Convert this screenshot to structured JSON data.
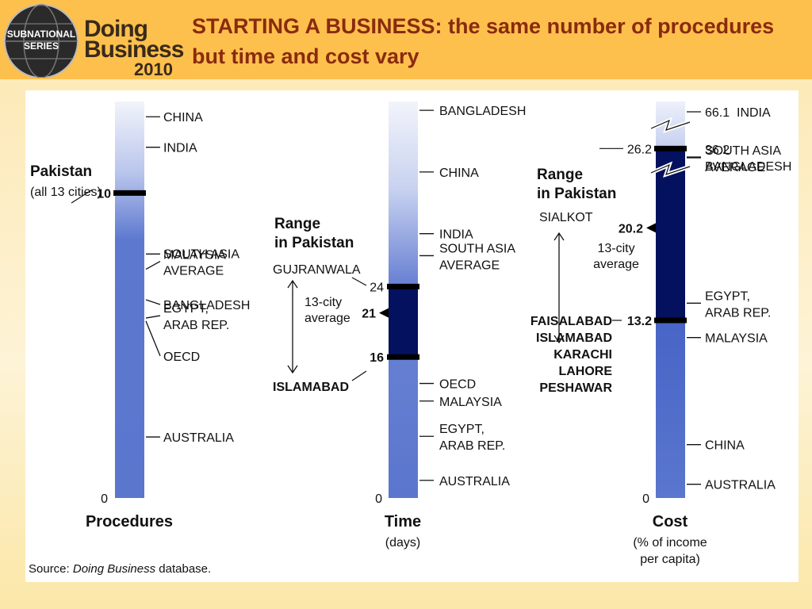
{
  "header": {
    "logo": {
      "line1": "SUBNATIONAL",
      "line2": "SERIES",
      "brand1": "Doing",
      "brand2": "Business",
      "year": "2010"
    },
    "title": "STARTING A BUSINESS: the same number of procedures but time and cost vary"
  },
  "source": {
    "prefix": "Source: ",
    "italic": "Doing Business",
    "suffix": " database."
  },
  "colors": {
    "header_bg": "#fdc04d",
    "title": "#8a2a0e",
    "bar_light": "#eef2fb",
    "bar_mid": "#5a76cd",
    "bar_dark": "#03115e"
  },
  "chart_data": [
    {
      "type": "bar",
      "title": "Procedures",
      "subtitle": "",
      "ylim": [
        0,
        13
      ],
      "zero_label": "0",
      "economies": [
        {
          "name": "CHINA",
          "value": 12.5
        },
        {
          "name": "INDIA",
          "value": 11.5
        },
        {
          "name": "MALAYSIA",
          "value": 8
        },
        {
          "name": "SOUTH ASIA AVERAGE",
          "value": 7.5
        },
        {
          "name": "BANGLADESH",
          "value": 6.5
        },
        {
          "name": "EGYPT, ARAB REP.",
          "value": 5.9
        },
        {
          "name": "OECD",
          "value": 5.8
        },
        {
          "name": "AUSTRALIA",
          "value": 2
        }
      ],
      "pakistan": {
        "label": "Pakistan",
        "note": "(all 13 cities)",
        "value": 10,
        "value_label": "10"
      }
    },
    {
      "type": "bar",
      "title": "Time",
      "subtitle": "(days)",
      "ylim": [
        0,
        45
      ],
      "zero_label": "0",
      "economies": [
        {
          "name": "BANGLADESH",
          "value": 44
        },
        {
          "name": "CHINA",
          "value": 37
        },
        {
          "name": "INDIA",
          "value": 30
        },
        {
          "name": "SOUTH ASIA AVERAGE",
          "value": 27.5
        },
        {
          "name": "OECD",
          "value": 13
        },
        {
          "name": "MALAYSIA",
          "value": 11
        },
        {
          "name": "EGYPT, ARAB REP.",
          "value": 7
        },
        {
          "name": "AUSTRALIA",
          "value": 2
        }
      ],
      "range": {
        "heading": "Range in Pakistan",
        "high": {
          "city": "GUJRANWALA",
          "value": 24,
          "label": "24"
        },
        "low": {
          "city": "ISLAMABAD",
          "value": 16,
          "label": "16"
        },
        "average": {
          "label": "13-city average",
          "value": 21,
          "value_label": "21"
        }
      }
    },
    {
      "type": "bar",
      "title": "Cost",
      "subtitle": "(% of income per capita)",
      "ylim": [
        0,
        30
      ],
      "axis_breaks": true,
      "zero_label": "0",
      "economies": [
        {
          "name": "INDIA",
          "value": 66.1,
          "value_label": "66.1"
        },
        {
          "name": "BANGLADESH",
          "value": 36.2,
          "value_label": "36.2"
        },
        {
          "name": "SOUTH ASIA AVERAGE",
          "value": 25.5
        },
        {
          "name": "EGYPT, ARAB REP.",
          "value": 14.5
        },
        {
          "name": "MALAYSIA",
          "value": 11.9
        },
        {
          "name": "CHINA",
          "value": 3.8
        },
        {
          "name": "AUSTRALIA",
          "value": 0.8
        }
      ],
      "range": {
        "heading": "Range in Pakistan",
        "high": {
          "city": "SIALKOT",
          "value": 26.2,
          "label": "26.2"
        },
        "low": {
          "cities": [
            "FAISALABAD",
            "ISLAMABAD",
            "KARACHI",
            "LAHORE",
            "PESHAWAR"
          ],
          "value": 13.2,
          "label": "13.2"
        },
        "average": {
          "label": "13-city average",
          "value": 20.2,
          "value_label": "20.2"
        }
      }
    }
  ]
}
